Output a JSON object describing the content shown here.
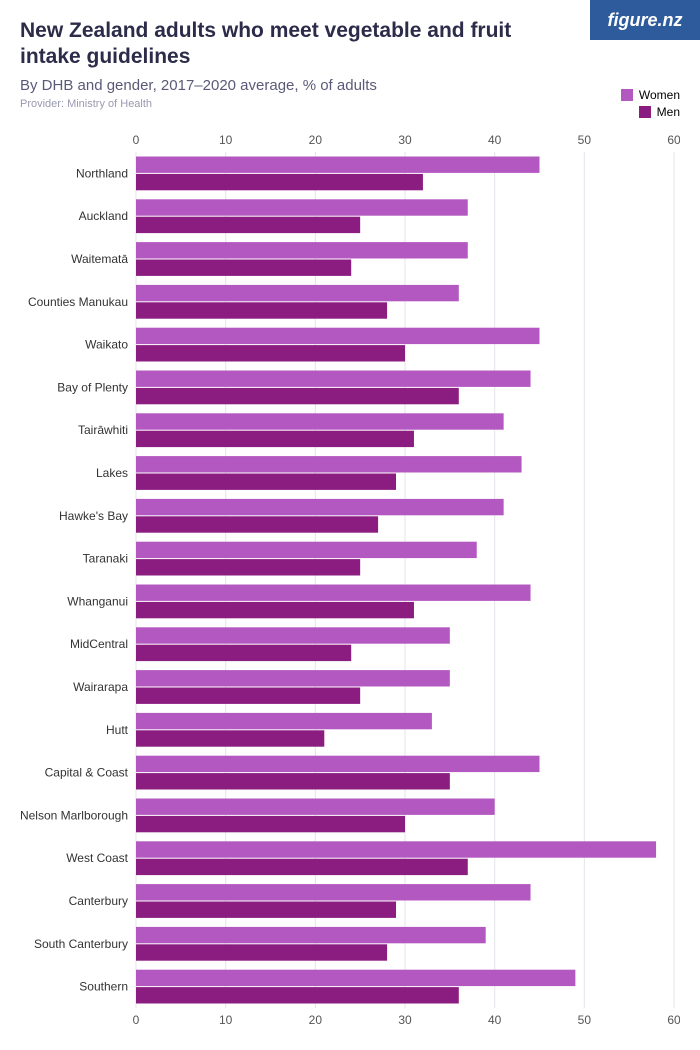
{
  "branding": {
    "logo_text": "figure.nz",
    "logo_bg": "#2d5b9c",
    "logo_fg": "#ffffff"
  },
  "header": {
    "title": "New Zealand adults who meet vegetable and fruit intake guidelines",
    "subtitle": "By DHB and gender, 2017–2020 average, % of adults",
    "provider": "Provider: Ministry of Health"
  },
  "legend": {
    "items": [
      {
        "label": "Women",
        "color": "#b458c1"
      },
      {
        "label": "Men",
        "color": "#8a1d7f"
      }
    ]
  },
  "chart": {
    "type": "grouped-horizontal-bar",
    "xlim": [
      0,
      60
    ],
    "xticks": [
      0,
      10,
      20,
      30,
      40,
      50,
      60
    ],
    "background_color": "#ffffff",
    "gridline_color": "#e4e4ec",
    "axis_color": "#b8b8c8",
    "axis_label_fontsize": 12,
    "cat_label_fontsize": 12,
    "bar_gap_within_group": 1,
    "colors": {
      "women": "#b458c1",
      "men": "#8a1d7f"
    },
    "categories": [
      {
        "label": "Northland",
        "women": 45,
        "men": 32
      },
      {
        "label": "Auckland",
        "women": 37,
        "men": 25
      },
      {
        "label": "Waitematā",
        "women": 37,
        "men": 24
      },
      {
        "label": "Counties Manukau",
        "women": 36,
        "men": 28
      },
      {
        "label": "Waikato",
        "women": 45,
        "men": 30
      },
      {
        "label": "Bay of Plenty",
        "women": 44,
        "men": 36
      },
      {
        "label": "Tairāwhiti",
        "women": 41,
        "men": 31
      },
      {
        "label": "Lakes",
        "women": 43,
        "men": 29
      },
      {
        "label": "Hawke's Bay",
        "women": 41,
        "men": 27
      },
      {
        "label": "Taranaki",
        "women": 38,
        "men": 25
      },
      {
        "label": "Whanganui",
        "women": 44,
        "men": 31
      },
      {
        "label": "MidCentral",
        "women": 35,
        "men": 24
      },
      {
        "label": "Wairarapa",
        "women": 35,
        "men": 25
      },
      {
        "label": "Hutt",
        "women": 33,
        "men": 21
      },
      {
        "label": "Capital & Coast",
        "women": 45,
        "men": 35
      },
      {
        "label": "Nelson Marlborough",
        "women": 40,
        "men": 30
      },
      {
        "label": "West Coast",
        "women": 58,
        "men": 37
      },
      {
        "label": "Canterbury",
        "women": 44,
        "men": 29
      },
      {
        "label": "South Canterbury",
        "women": 39,
        "men": 28
      },
      {
        "label": "Southern",
        "women": 49,
        "men": 36
      }
    ]
  }
}
